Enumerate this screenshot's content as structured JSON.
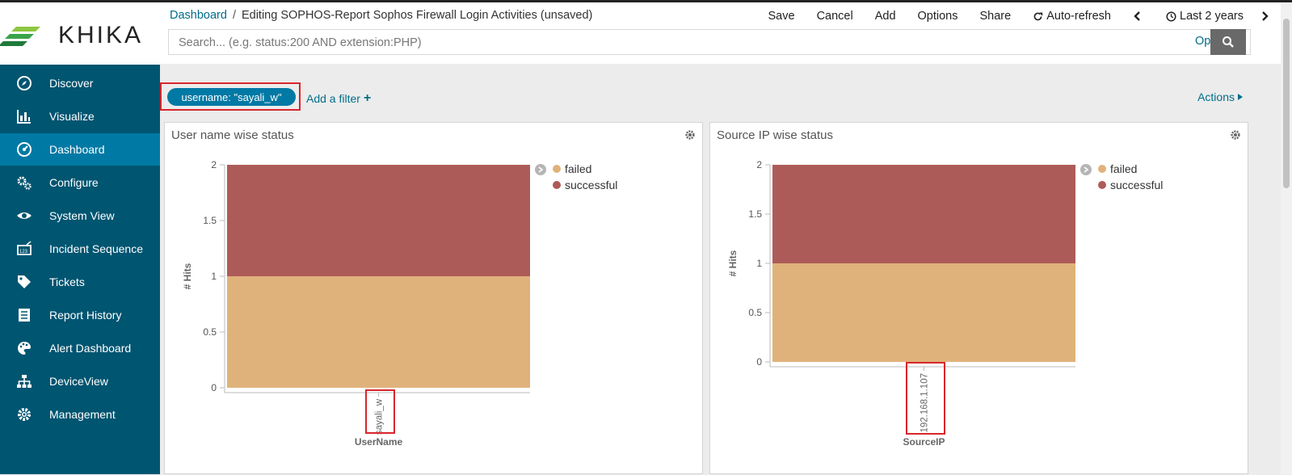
{
  "logo": {
    "text": "KHIKA",
    "colors": [
      "#8dc63f",
      "#3aa34a",
      "#1f7a3a"
    ]
  },
  "sidebar": {
    "items": [
      {
        "label": "Discover",
        "icon": "compass-icon",
        "active": false
      },
      {
        "label": "Visualize",
        "icon": "bar-chart-icon",
        "active": false
      },
      {
        "label": "Dashboard",
        "icon": "dashboard-icon",
        "active": true
      },
      {
        "label": "Configure",
        "icon": "cogs-icon",
        "active": false
      },
      {
        "label": "System View",
        "icon": "eye-icon",
        "active": false
      },
      {
        "label": "Incident Sequence",
        "icon": "sequence-icon",
        "active": false
      },
      {
        "label": "Tickets",
        "icon": "tag-icon",
        "active": false
      },
      {
        "label": "Report History",
        "icon": "report-icon",
        "active": false
      },
      {
        "label": "Alert Dashboard",
        "icon": "palette-icon",
        "active": false
      },
      {
        "label": "DeviceView",
        "icon": "sitemap-icon",
        "active": false
      },
      {
        "label": "Management",
        "icon": "gear-icon",
        "active": false
      }
    ],
    "bg_color": "#005571",
    "active_color": "#0079a5"
  },
  "breadcrumb": {
    "root": "Dashboard",
    "separator": "/",
    "current": "Editing SOPHOS-Report Sophos Firewall Login Activities (unsaved)"
  },
  "menu": {
    "save": "Save",
    "cancel": "Cancel",
    "add": "Add",
    "options": "Options",
    "share": "Share",
    "auto_refresh": "Auto-refresh",
    "time_range": "Last 2 years"
  },
  "search": {
    "placeholder": "Search... (e.g. status:200 AND extension:PHP)",
    "value": "",
    "options_label": "Options"
  },
  "filters": {
    "pills": [
      "username: \"sayali_w\""
    ],
    "add_filter_label": "Add a filter",
    "actions_label": "Actions"
  },
  "panels": [
    {
      "title": "User name wise status"
    },
    {
      "title": "Source IP wise status"
    }
  ],
  "legend_colors": {
    "failed": "#e0b27b",
    "successful": "#ad5b58"
  },
  "chart_data": [
    {
      "type": "bar",
      "stacked": true,
      "title": "User name wise status",
      "xlabel": "UserName",
      "ylabel": "# Hits",
      "categories": [
        "sayali_w"
      ],
      "series": [
        {
          "name": "failed",
          "values": [
            1
          ],
          "color": "#e0b27b"
        },
        {
          "name": "successful",
          "values": [
            1
          ],
          "color": "#ad5b58"
        }
      ],
      "ylim": [
        0,
        2
      ],
      "yticks": [
        "0",
        "0.5",
        "1",
        "1.5",
        "2"
      ],
      "legend": "right"
    },
    {
      "type": "bar",
      "stacked": true,
      "title": "Source IP wise status",
      "xlabel": "SourceIP",
      "ylabel": "# Hits",
      "categories": [
        "192.168.1.107"
      ],
      "series": [
        {
          "name": "failed",
          "values": [
            1
          ],
          "color": "#e0b27b"
        },
        {
          "name": "successful",
          "values": [
            1
          ],
          "color": "#ad5b58"
        }
      ],
      "ylim": [
        0,
        2
      ],
      "yticks": [
        "0",
        "0.5",
        "1",
        "1.5",
        "2"
      ],
      "legend": "right"
    }
  ]
}
